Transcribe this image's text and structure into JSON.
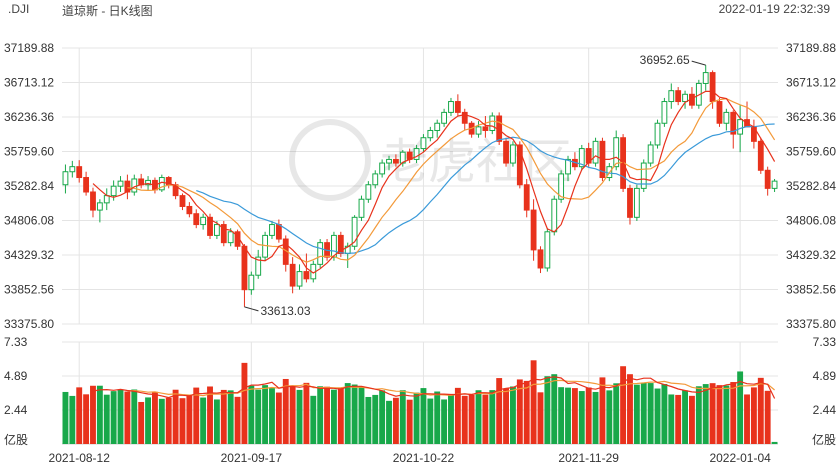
{
  "header": {
    "symbol": ".DJI",
    "title": "道琼斯 - 日K线图",
    "timestamp": "2022-01-19 22:32:39"
  },
  "watermark": "老虎社区",
  "colors": {
    "up": "#18a84a",
    "down": "#e8321c",
    "ma5": "#e8321c",
    "ma10": "#f39a3a",
    "ma20": "#3a9ad9",
    "grid": "#e4e4e4"
  },
  "chart_data": [
    {
      "type": "candlestick",
      "panel": "price",
      "price_axis_labels": [
        "37189.88",
        "36713.12",
        "36236.36",
        "35759.60",
        "35282.84",
        "34806.08",
        "34329.32",
        "33852.56",
        "33375.80"
      ],
      "date_labels": [
        "2021-08-12",
        "2021-09-17",
        "2021-10-22",
        "2021-11-29",
        "2022-01-04"
      ],
      "ylim": [
        33375.8,
        37189.88
      ],
      "annotations": [
        {
          "text": "36952.65",
          "value": 36952.65,
          "kind": "high"
        },
        {
          "text": "33613.03",
          "value": 33613.03,
          "kind": "low"
        }
      ],
      "ma_series_names": [
        "MA5",
        "MA10",
        "MA20"
      ],
      "candles": [
        {
          "o": 35300,
          "h": 35580,
          "l": 35180,
          "c": 35480
        },
        {
          "o": 35480,
          "h": 35630,
          "l": 35400,
          "c": 35550
        },
        {
          "o": 35550,
          "h": 35640,
          "l": 35330,
          "c": 35400
        },
        {
          "o": 35400,
          "h": 35480,
          "l": 35150,
          "c": 35200
        },
        {
          "o": 35200,
          "h": 35260,
          "l": 34850,
          "c": 34950
        },
        {
          "o": 34950,
          "h": 35100,
          "l": 34780,
          "c": 35050
        },
        {
          "o": 35050,
          "h": 35250,
          "l": 34950,
          "c": 35150
        },
        {
          "o": 35150,
          "h": 35360,
          "l": 35080,
          "c": 35280
        },
        {
          "o": 35280,
          "h": 35420,
          "l": 35200,
          "c": 35350
        },
        {
          "o": 35350,
          "h": 35440,
          "l": 35100,
          "c": 35200
        },
        {
          "o": 35200,
          "h": 35440,
          "l": 35150,
          "c": 35380
        },
        {
          "o": 35380,
          "h": 35450,
          "l": 35250,
          "c": 35300
        },
        {
          "o": 35300,
          "h": 35420,
          "l": 35220,
          "c": 35360
        },
        {
          "o": 35360,
          "h": 35400,
          "l": 35180,
          "c": 35230
        },
        {
          "o": 35230,
          "h": 35440,
          "l": 35200,
          "c": 35400
        },
        {
          "o": 35400,
          "h": 35420,
          "l": 35250,
          "c": 35300
        },
        {
          "o": 35300,
          "h": 35340,
          "l": 35100,
          "c": 35150
        },
        {
          "o": 35150,
          "h": 35180,
          "l": 34950,
          "c": 35000
        },
        {
          "o": 35000,
          "h": 35060,
          "l": 34850,
          "c": 34900
        },
        {
          "o": 34900,
          "h": 34960,
          "l": 34700,
          "c": 34750
        },
        {
          "o": 34750,
          "h": 34900,
          "l": 34680,
          "c": 34850
        },
        {
          "o": 34850,
          "h": 34900,
          "l": 34550,
          "c": 34600
        },
        {
          "o": 34600,
          "h": 34800,
          "l": 34550,
          "c": 34750
        },
        {
          "o": 34750,
          "h": 34800,
          "l": 34450,
          "c": 34500
        },
        {
          "o": 34500,
          "h": 34700,
          "l": 34450,
          "c": 34650
        },
        {
          "o": 34650,
          "h": 34680,
          "l": 34400,
          "c": 34450
        },
        {
          "o": 34450,
          "h": 34480,
          "l": 33613,
          "c": 33850
        },
        {
          "o": 33850,
          "h": 34100,
          "l": 33780,
          "c": 34050
        },
        {
          "o": 34050,
          "h": 34400,
          "l": 34000,
          "c": 34300
        },
        {
          "o": 34300,
          "h": 34650,
          "l": 34250,
          "c": 34600
        },
        {
          "o": 34600,
          "h": 34800,
          "l": 34550,
          "c": 34750
        },
        {
          "o": 34750,
          "h": 34820,
          "l": 34500,
          "c": 34550
        },
        {
          "o": 34550,
          "h": 34600,
          "l": 34100,
          "c": 34200
        },
        {
          "o": 34200,
          "h": 34300,
          "l": 33800,
          "c": 33900
        },
        {
          "o": 33900,
          "h": 34200,
          "l": 33850,
          "c": 34100
        },
        {
          "o": 34100,
          "h": 34350,
          "l": 33950,
          "c": 34000
        },
        {
          "o": 34000,
          "h": 34250,
          "l": 33950,
          "c": 34200
        },
        {
          "o": 34200,
          "h": 34550,
          "l": 34150,
          "c": 34500
        },
        {
          "o": 34500,
          "h": 34550,
          "l": 34250,
          "c": 34300
        },
        {
          "o": 34300,
          "h": 34650,
          "l": 34250,
          "c": 34600
        },
        {
          "o": 34600,
          "h": 34650,
          "l": 34300,
          "c": 34350
        },
        {
          "o": 34350,
          "h": 34500,
          "l": 34150,
          "c": 34450
        },
        {
          "o": 34450,
          "h": 34880,
          "l": 34400,
          "c": 34850
        },
        {
          "o": 34850,
          "h": 35150,
          "l": 34800,
          "c": 35100
        },
        {
          "o": 35100,
          "h": 35350,
          "l": 35050,
          "c": 35300
        },
        {
          "o": 35300,
          "h": 35500,
          "l": 35250,
          "c": 35450
        },
        {
          "o": 35450,
          "h": 35650,
          "l": 35400,
          "c": 35600
        },
        {
          "o": 35600,
          "h": 35700,
          "l": 35500,
          "c": 35650
        },
        {
          "o": 35650,
          "h": 35720,
          "l": 35550,
          "c": 35600
        },
        {
          "o": 35600,
          "h": 35780,
          "l": 35550,
          "c": 35750
        },
        {
          "o": 35750,
          "h": 35800,
          "l": 35600,
          "c": 35650
        },
        {
          "o": 35650,
          "h": 35850,
          "l": 35600,
          "c": 35800
        },
        {
          "o": 35800,
          "h": 36000,
          "l": 35750,
          "c": 35950
        },
        {
          "o": 35950,
          "h": 36100,
          "l": 35900,
          "c": 36050
        },
        {
          "o": 36050,
          "h": 36200,
          "l": 35950,
          "c": 36150
        },
        {
          "o": 36150,
          "h": 36350,
          "l": 36100,
          "c": 36300
        },
        {
          "o": 36300,
          "h": 36500,
          "l": 36250,
          "c": 36450
        },
        {
          "o": 36450,
          "h": 36550,
          "l": 36250,
          "c": 36300
        },
        {
          "o": 36300,
          "h": 36350,
          "l": 36050,
          "c": 36150
        },
        {
          "o": 36150,
          "h": 36180,
          "l": 35950,
          "c": 36000
        },
        {
          "o": 36000,
          "h": 36180,
          "l": 35950,
          "c": 36100
        },
        {
          "o": 36100,
          "h": 36250,
          "l": 35950,
          "c": 36050
        },
        {
          "o": 36050,
          "h": 36300,
          "l": 36000,
          "c": 36250
        },
        {
          "o": 36250,
          "h": 36300,
          "l": 35850,
          "c": 35900
        },
        {
          "o": 35900,
          "h": 35950,
          "l": 35550,
          "c": 35600
        },
        {
          "o": 35600,
          "h": 35900,
          "l": 35550,
          "c": 35850
        },
        {
          "o": 35850,
          "h": 35900,
          "l": 35250,
          "c": 35300
        },
        {
          "o": 35300,
          "h": 35380,
          "l": 34850,
          "c": 34950
        },
        {
          "o": 34950,
          "h": 35100,
          "l": 34250,
          "c": 34400
        },
        {
          "o": 34400,
          "h": 34450,
          "l": 34080,
          "c": 34150
        },
        {
          "o": 34150,
          "h": 34700,
          "l": 34100,
          "c": 34650
        },
        {
          "o": 34650,
          "h": 35150,
          "l": 34600,
          "c": 35100
        },
        {
          "o": 35100,
          "h": 35500,
          "l": 35050,
          "c": 35450
        },
        {
          "o": 35450,
          "h": 35700,
          "l": 35350,
          "c": 35650
        },
        {
          "o": 35650,
          "h": 35750,
          "l": 35500,
          "c": 35550
        },
        {
          "o": 35550,
          "h": 35850,
          "l": 35500,
          "c": 35800
        },
        {
          "o": 35800,
          "h": 35880,
          "l": 35550,
          "c": 35600
        },
        {
          "o": 35600,
          "h": 35950,
          "l": 35550,
          "c": 35900
        },
        {
          "o": 35900,
          "h": 35950,
          "l": 35350,
          "c": 35400
        },
        {
          "o": 35400,
          "h": 35600,
          "l": 35350,
          "c": 35550
        },
        {
          "o": 35550,
          "h": 36050,
          "l": 35500,
          "c": 35950
        },
        {
          "o": 35950,
          "h": 36000,
          "l": 35200,
          "c": 35250
        },
        {
          "o": 35250,
          "h": 35300,
          "l": 34750,
          "c": 34850
        },
        {
          "o": 34850,
          "h": 35300,
          "l": 34800,
          "c": 35250
        },
        {
          "o": 35250,
          "h": 35650,
          "l": 35200,
          "c": 35600
        },
        {
          "o": 35600,
          "h": 35900,
          "l": 35550,
          "c": 35850
        },
        {
          "o": 35850,
          "h": 36200,
          "l": 35800,
          "c": 36150
        },
        {
          "o": 36150,
          "h": 36500,
          "l": 36100,
          "c": 36450
        },
        {
          "o": 36450,
          "h": 36700,
          "l": 36350,
          "c": 36600
        },
        {
          "o": 36600,
          "h": 36650,
          "l": 36400,
          "c": 36450
        },
        {
          "o": 36450,
          "h": 36600,
          "l": 36350,
          "c": 36550
        },
        {
          "o": 36550,
          "h": 36650,
          "l": 36350,
          "c": 36400
        },
        {
          "o": 36400,
          "h": 36750,
          "l": 36350,
          "c": 36700
        },
        {
          "o": 36700,
          "h": 36952.65,
          "l": 36600,
          "c": 36850
        },
        {
          "o": 36850,
          "h": 36880,
          "l": 36350,
          "c": 36450
        },
        {
          "o": 36450,
          "h": 36500,
          "l": 36100,
          "c": 36150
        },
        {
          "o": 36150,
          "h": 36350,
          "l": 36050,
          "c": 36300
        },
        {
          "o": 36300,
          "h": 36330,
          "l": 35800,
          "c": 36000
        },
        {
          "o": 36000,
          "h": 36400,
          "l": 35750,
          "c": 36200
        },
        {
          "o": 36200,
          "h": 36450,
          "l": 36100,
          "c": 36100
        },
        {
          "o": 36100,
          "h": 36200,
          "l": 35800,
          "c": 35900
        },
        {
          "o": 35900,
          "h": 35950,
          "l": 35450,
          "c": 35500
        },
        {
          "o": 35500,
          "h": 35550,
          "l": 35150,
          "c": 35250
        },
        {
          "o": 35250,
          "h": 35380,
          "l": 35200,
          "c": 35350
        }
      ]
    },
    {
      "type": "bar",
      "panel": "volume",
      "axis_labels": [
        "7.33",
        "4.89",
        "2.44",
        "亿股"
      ],
      "unit": "亿股",
      "ylim": [
        0,
        7.33
      ],
      "ma_series_names": [
        "VOL-MA5",
        "VOL-MA10"
      ]
    }
  ]
}
